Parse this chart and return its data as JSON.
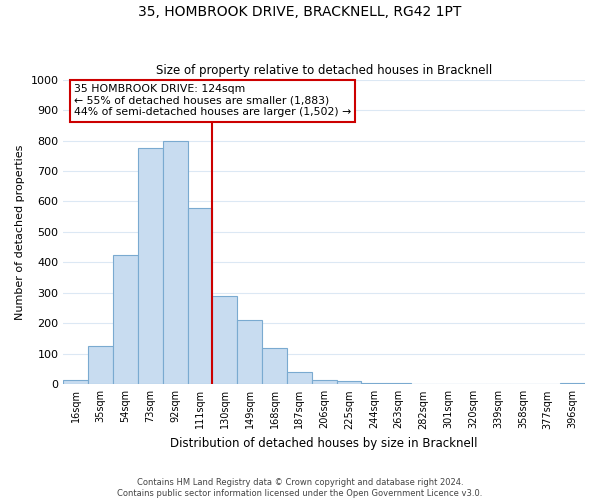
{
  "title": "35, HOMBROOK DRIVE, BRACKNELL, RG42 1PT",
  "subtitle": "Size of property relative to detached houses in Bracknell",
  "xlabel": "Distribution of detached houses by size in Bracknell",
  "ylabel": "Number of detached properties",
  "bar_color": "#c8dcf0",
  "bar_edge_color": "#7aaad0",
  "bin_labels": [
    "16sqm",
    "35sqm",
    "54sqm",
    "73sqm",
    "92sqm",
    "111sqm",
    "130sqm",
    "149sqm",
    "168sqm",
    "187sqm",
    "206sqm",
    "225sqm",
    "244sqm",
    "263sqm",
    "282sqm",
    "301sqm",
    "320sqm",
    "339sqm",
    "358sqm",
    "377sqm",
    "396sqm"
  ],
  "bar_heights": [
    15,
    125,
    425,
    775,
    800,
    580,
    290,
    210,
    120,
    40,
    15,
    10,
    5,
    3,
    2,
    2,
    1,
    1,
    1,
    1,
    5
  ],
  "ylim": [
    0,
    1000
  ],
  "yticks": [
    0,
    100,
    200,
    300,
    400,
    500,
    600,
    700,
    800,
    900,
    1000
  ],
  "vline_x_index": 5.5,
  "vline_color": "#cc0000",
  "annotation_line1": "35 HOMBROOK DRIVE: 124sqm",
  "annotation_line2": "← 55% of detached houses are smaller (1,883)",
  "annotation_line3": "44% of semi-detached houses are larger (1,502) →",
  "annotation_box_color": "#ffffff",
  "annotation_box_edge": "#cc0000",
  "footer1": "Contains HM Land Registry data © Crown copyright and database right 2024.",
  "footer2": "Contains public sector information licensed under the Open Government Licence v3.0.",
  "grid_color": "#dce8f4",
  "background_color": "#ffffff"
}
